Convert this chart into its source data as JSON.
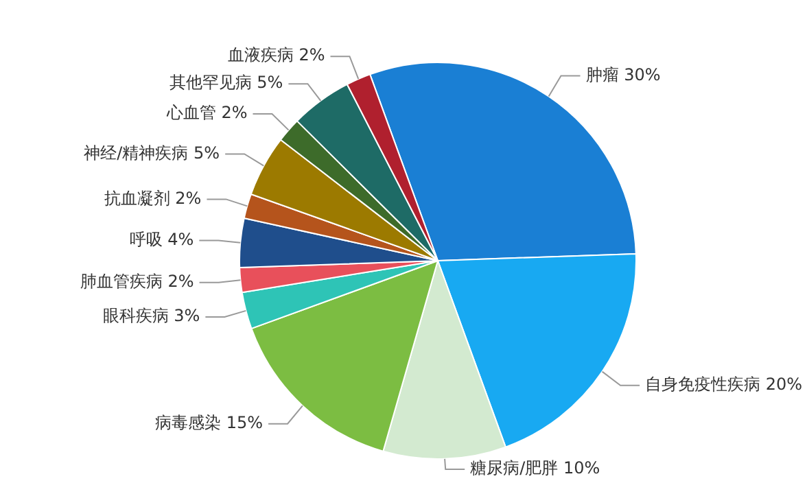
{
  "chart_data": {
    "type": "pie",
    "categories": [
      "肿瘤",
      "自身免疫性疾病",
      "糖尿病/肥胖",
      "病毒感染",
      "眼科疾病",
      "肺血管疾病",
      "呼吸",
      "抗血凝剂",
      "神经/精神疾病",
      "心血管",
      "其他罕见病",
      "血液疾病"
    ],
    "values": [
      30,
      20,
      10,
      15,
      3,
      2,
      4,
      2,
      5,
      2,
      5,
      2
    ],
    "value_labels": [
      "30%",
      "20%",
      "10%",
      "15%",
      "3%",
      "2%",
      "4%",
      "2%",
      "5%",
      "2%",
      "5%",
      "2%"
    ],
    "colors": [
      "#1a7fd4",
      "#18a9f2",
      "#d3ead0",
      "#7cbd42",
      "#2ec4b6",
      "#e8505b",
      "#1f4e8c",
      "#b5541c",
      "#9c7a00",
      "#3d6b2a",
      "#1e6b66",
      "#b0202e"
    ]
  }
}
